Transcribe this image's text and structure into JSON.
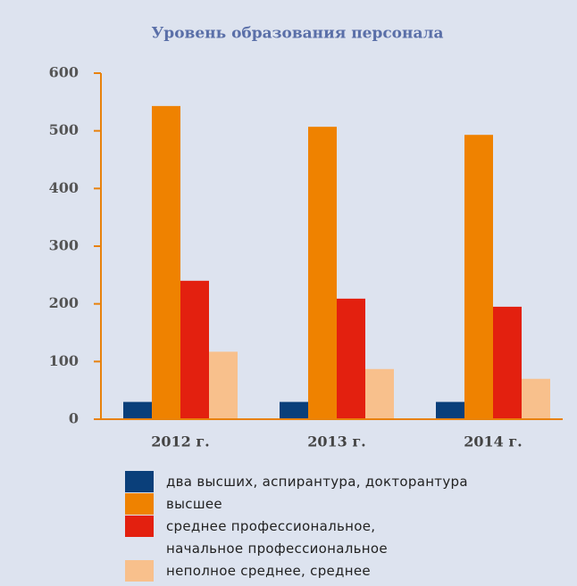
{
  "chart_data": {
    "type": "bar",
    "title": "Уровень образования персонала",
    "categories": [
      "2012 г.",
      "2013 г.",
      "2014 г."
    ],
    "series": [
      {
        "name": "два высших, аспирантура, докторантура",
        "color": "#0a3f7a",
        "values": [
          30,
          30,
          30
        ]
      },
      {
        "name": "высшее",
        "color": "#ef8200",
        "values": [
          543,
          507,
          493
        ]
      },
      {
        "name": "среднее профессиональное,\nначальное профессиональное",
        "color": "#e3200f",
        "values": [
          240,
          209,
          195
        ]
      },
      {
        "name": "неполное среднее, среднее",
        "color": "#f8c08c",
        "values": [
          117,
          87,
          70
        ]
      }
    ],
    "ylim": [
      0,
      600
    ],
    "yticks": [
      0,
      100,
      200,
      300,
      400,
      500,
      600
    ],
    "axis_color": "#e8820c"
  }
}
